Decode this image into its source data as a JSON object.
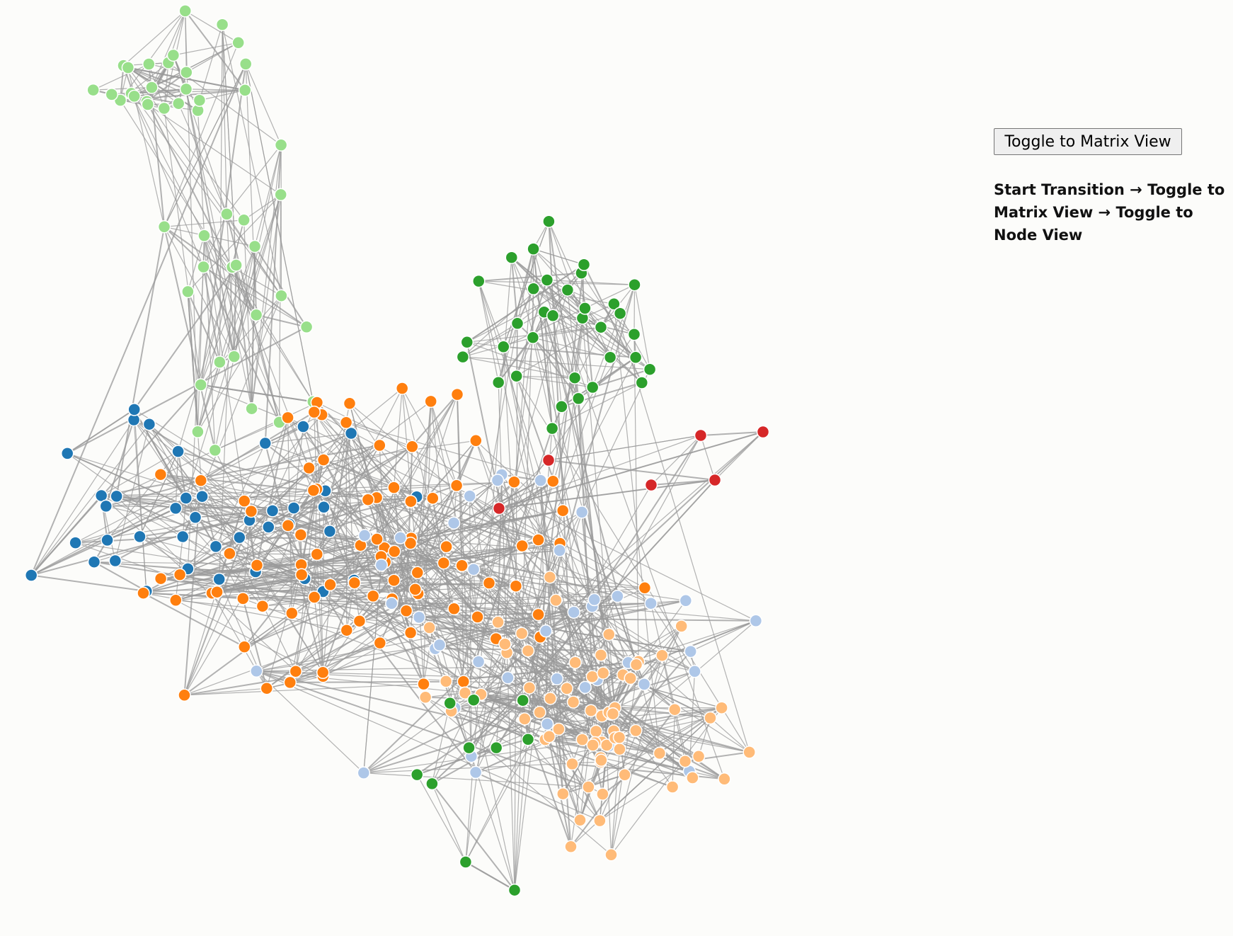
{
  "button": {
    "label": "Toggle to Matrix View"
  },
  "instructions": "Start Transition → Toggle to Matrix View → Toggle to Node View"
}
